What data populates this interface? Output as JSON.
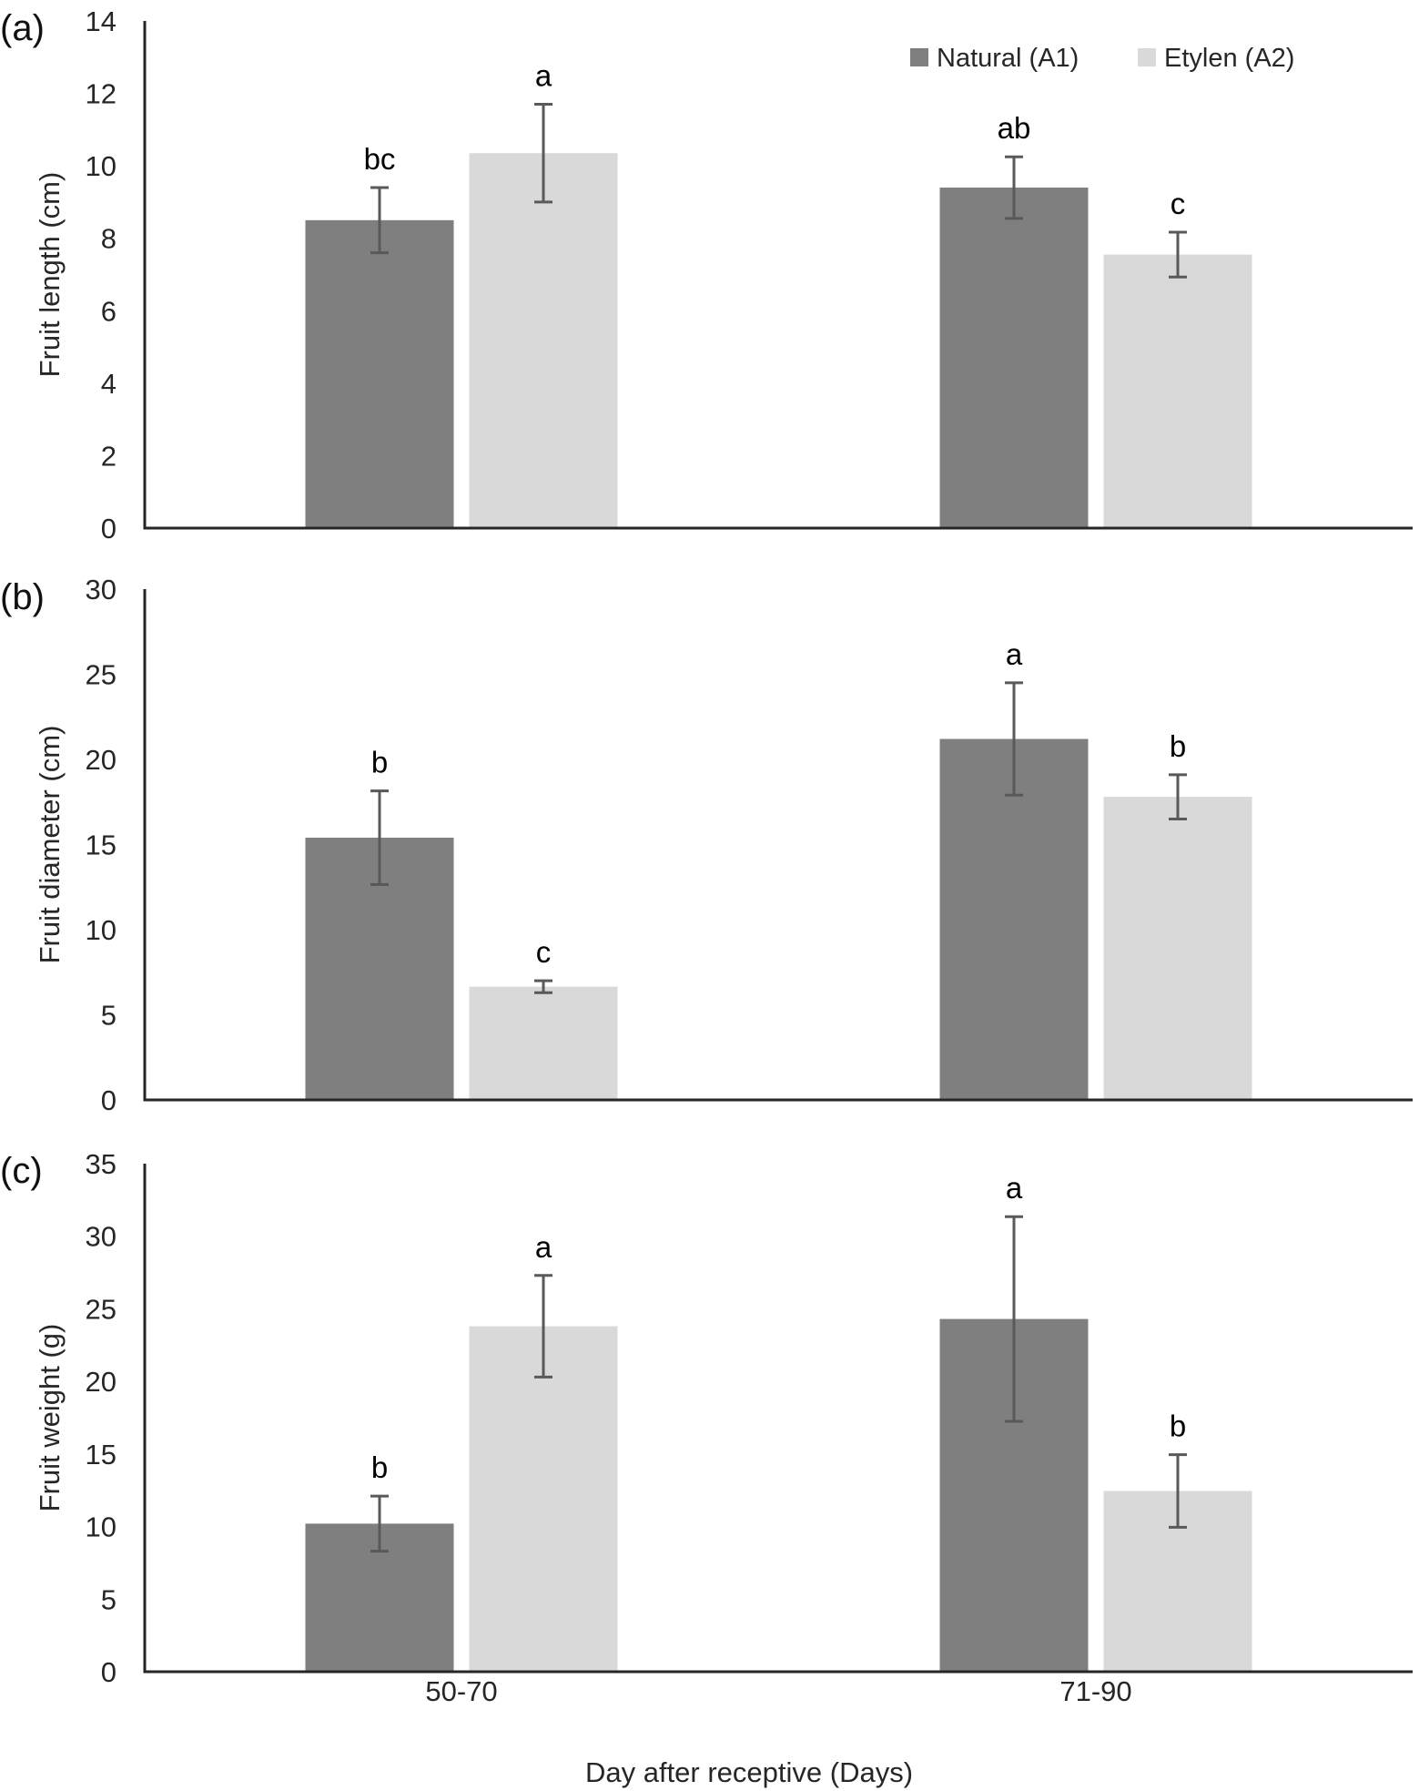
{
  "chart_data": [
    {
      "type": "bar",
      "panel_label": "(a)",
      "categories": [
        "50-70",
        "71-90"
      ],
      "ylabel": "Fruit length (cm)",
      "xlabel": "",
      "ylim": [
        0,
        14
      ],
      "yticks": [
        0,
        2,
        4,
        6,
        8,
        10,
        12,
        14
      ],
      "show_legend": true,
      "legend_position": "top-right",
      "series": [
        {
          "name": "Natural (A1)",
          "color": "#7f7f7f",
          "values": [
            8.5,
            9.4
          ],
          "errors": [
            0.9,
            0.85
          ],
          "letters": [
            "bc",
            "ab"
          ]
        },
        {
          "name": "Etylen (A2)",
          "color": "#d9d9d9",
          "values": [
            10.35,
            7.55
          ],
          "errors": [
            1.35,
            0.62
          ],
          "letters": [
            "a",
            "c"
          ]
        }
      ]
    },
    {
      "type": "bar",
      "panel_label": "(b)",
      "categories": [
        "50-70",
        "71-90"
      ],
      "ylabel": "Fruit diameter (cm)",
      "xlabel": "",
      "ylim": [
        0,
        30
      ],
      "yticks": [
        0,
        5,
        10,
        15,
        20,
        25,
        30
      ],
      "show_legend": false,
      "series": [
        {
          "name": "Natural (A1)",
          "color": "#7f7f7f",
          "values": [
            15.4,
            21.2
          ],
          "errors": [
            2.75,
            3.3
          ],
          "letters": [
            "b",
            "a"
          ]
        },
        {
          "name": "Etylen (A2)",
          "color": "#d9d9d9",
          "values": [
            6.65,
            17.8
          ],
          "errors": [
            0.35,
            1.3
          ],
          "letters": [
            "c",
            "b"
          ]
        }
      ]
    },
    {
      "type": "bar",
      "panel_label": "(c)",
      "categories": [
        "50-70",
        "71-90"
      ],
      "ylabel": "Fruit weight (g)",
      "xlabel": "Day after receptive (Days)",
      "ylim": [
        0,
        35
      ],
      "yticks": [
        0,
        5,
        10,
        15,
        20,
        25,
        30,
        35
      ],
      "show_legend": false,
      "show_xticklabels": true,
      "series": [
        {
          "name": "Natural (A1)",
          "color": "#7f7f7f",
          "values": [
            10.2,
            24.3
          ],
          "errors": [
            1.9,
            7.05
          ],
          "letters": [
            "b",
            "a"
          ]
        },
        {
          "name": "Etylen (A2)",
          "color": "#d9d9d9",
          "values": [
            23.8,
            12.45
          ],
          "errors": [
            3.5,
            2.5
          ],
          "letters": [
            "a",
            "b"
          ]
        }
      ]
    }
  ],
  "legend": {
    "items": [
      {
        "label": "Natural (A1)",
        "color": "#7f7f7f"
      },
      {
        "label": "Etylen (A2)",
        "color": "#d9d9d9"
      }
    ]
  },
  "colors": {
    "error_bar": "#595959",
    "axis": "#262626"
  }
}
